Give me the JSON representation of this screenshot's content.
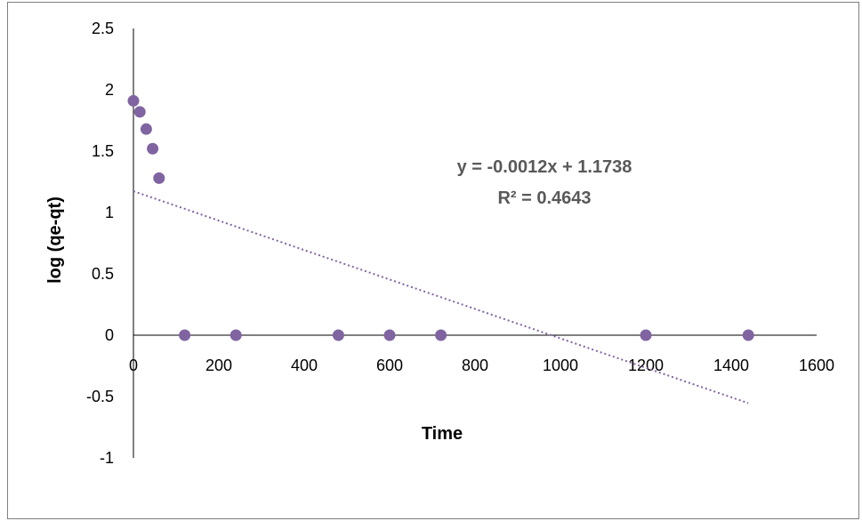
{
  "chart_data": {
    "type": "scatter",
    "title": "",
    "xlabel": "Time",
    "ylabel": "log (qe-qt)",
    "xlim": [
      0,
      1600
    ],
    "ylim": [
      -1,
      2.5
    ],
    "x_ticks": [
      "0",
      "200",
      "400",
      "600",
      "800",
      "1000",
      "1200",
      "1400",
      "1600"
    ],
    "y_ticks": [
      "2.5",
      "2",
      "1.5",
      "1",
      "0.5",
      "0",
      "-0.5",
      "-1"
    ],
    "x_tick_values": [
      0,
      200,
      400,
      600,
      800,
      1000,
      1200,
      1400,
      1600
    ],
    "y_tick_values": [
      2.5,
      2,
      1.5,
      1,
      0.5,
      0,
      -0.5,
      -1
    ],
    "grid": false,
    "marker_color": "#8064a2",
    "trendline_color": "#8064a2",
    "series": [
      {
        "x": [
          0,
          15,
          30,
          45,
          60,
          120,
          240,
          480,
          600,
          720,
          1200,
          1440
        ],
        "y": [
          1.91,
          1.82,
          1.68,
          1.52,
          1.28,
          0,
          0,
          0,
          0,
          0,
          0,
          0
        ]
      }
    ],
    "trendline": {
      "type": "linear",
      "slope": -0.0012,
      "intercept": 1.1738,
      "x_range": [
        0,
        1440
      ],
      "equation": "y = -0.0012x + 1.1738",
      "r_squared": "R² = 0.4643"
    }
  }
}
